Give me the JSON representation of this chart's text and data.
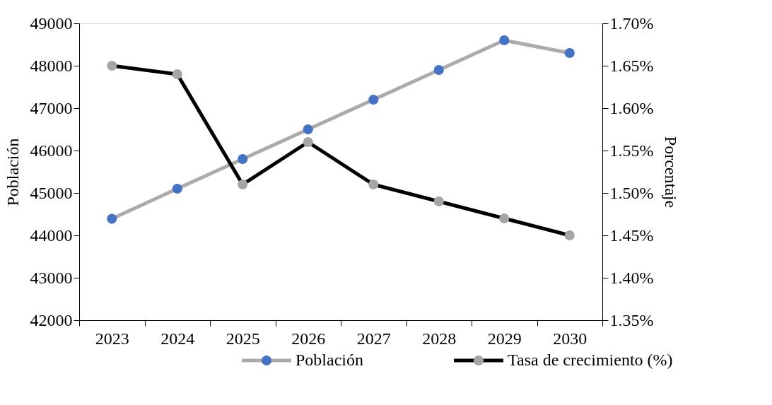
{
  "chart_data": {
    "type": "line",
    "categories": [
      "2023",
      "2024",
      "2025",
      "2026",
      "2027",
      "2028",
      "2029",
      "2030"
    ],
    "ylabel": "Población",
    "y2label": "Porcentaje",
    "ylim": [
      42000,
      49000
    ],
    "yticks": [
      42000,
      43000,
      44000,
      45000,
      46000,
      47000,
      48000,
      49000
    ],
    "y2lim": [
      1.35,
      1.7
    ],
    "y2ticks": [
      {
        "value": 1.35,
        "label": "1.35%"
      },
      {
        "value": 1.4,
        "label": "1.40%"
      },
      {
        "value": 1.45,
        "label": "1.45%"
      },
      {
        "value": 1.5,
        "label": "1.50%"
      },
      {
        "value": 1.55,
        "label": "1.55%"
      },
      {
        "value": 1.6,
        "label": "1.60%"
      },
      {
        "value": 1.65,
        "label": "1.65%"
      },
      {
        "value": 1.7,
        "label": "1.70%"
      }
    ],
    "series": [
      {
        "name": "Población",
        "color": "#aeaaaa",
        "colors": [
          "#4472c4",
          "#4472c4",
          "#4472c4",
          "#4472c4",
          "#4472c4",
          "#4472c4",
          "#4472c4",
          "#4472c4"
        ],
        "values": [
          44390,
          45100,
          45800,
          46500,
          47200,
          47900,
          48600,
          48300
        ]
      },
      {
        "name": "Tasa de crecimiento (%)",
        "color": "#000000",
        "colors": [
          "#a5a5a5",
          "#a5a5a5",
          "#a5a5a5",
          "#a5a5a5",
          "#a5a5a5",
          "#a5a5a5",
          "#a5a5a5",
          "#a5a5a5"
        ],
        "axis": "y2",
        "values": [
          1.65,
          1.64,
          1.51,
          1.56,
          1.51,
          1.49,
          1.47,
          1.45
        ]
      }
    ],
    "marker": "circle",
    "line_style": "solid",
    "grid": false,
    "legend": "bottom"
  }
}
